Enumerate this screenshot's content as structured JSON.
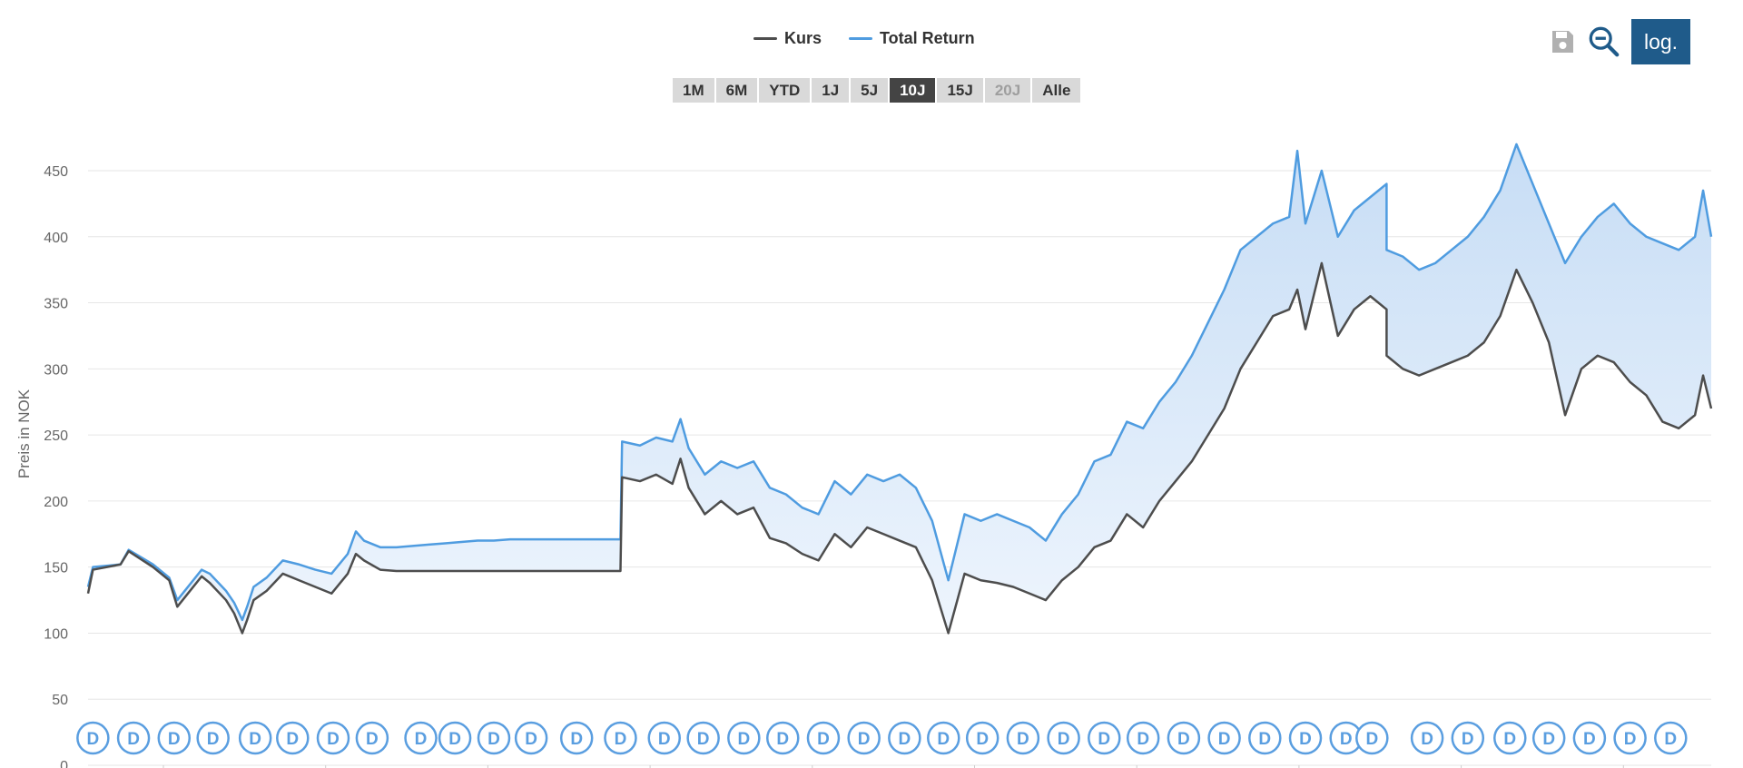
{
  "legend": {
    "items": [
      {
        "label": "Kurs",
        "color": "#4d4d4d"
      },
      {
        "label": "Total Return",
        "color": "#4f9ce0"
      }
    ]
  },
  "range_selector": {
    "buttons": [
      {
        "label": "1M",
        "state": "normal"
      },
      {
        "label": "6M",
        "state": "normal"
      },
      {
        "label": "YTD",
        "state": "normal"
      },
      {
        "label": "1J",
        "state": "normal"
      },
      {
        "label": "5J",
        "state": "normal"
      },
      {
        "label": "10J",
        "state": "active"
      },
      {
        "label": "15J",
        "state": "normal"
      },
      {
        "label": "20J",
        "state": "disabled"
      },
      {
        "label": "Alle",
        "state": "normal"
      }
    ]
  },
  "toolbar": {
    "icons": [
      "save-icon",
      "zoom-out-icon"
    ],
    "log_label": "log."
  },
  "colors": {
    "kurs": "#4d4d4d",
    "total_return": "#4f9ce0",
    "band_top": "#c7ddf5",
    "band_bottom": "#eef5fd",
    "grid": "#e6e6e6",
    "marker": "#5a9ee0",
    "active_button": "#444444",
    "log_button": "#1f5b8a"
  },
  "chart_data": {
    "type": "line",
    "ylabel": "Preis in NOK",
    "ylim": [
      0,
      470
    ],
    "y_ticks": [
      0,
      50,
      100,
      150,
      200,
      250,
      300,
      350,
      400,
      450
    ],
    "grid": true,
    "legend_position": "top-center",
    "x_range": [
      0,
      1
    ],
    "series": [
      {
        "name": "Kurs",
        "x": [
          0,
          0.003,
          0.02,
          0.025,
          0.04,
          0.05,
          0.055,
          0.07,
          0.075,
          0.085,
          0.09,
          0.095,
          0.098,
          0.102,
          0.11,
          0.12,
          0.13,
          0.14,
          0.15,
          0.16,
          0.165,
          0.17,
          0.18,
          0.19,
          0.2,
          0.21,
          0.22,
          0.23,
          0.24,
          0.25,
          0.26,
          0.27,
          0.275,
          0.28,
          0.29,
          0.3,
          0.31,
          0.32,
          0.328,
          0.329,
          0.34,
          0.35,
          0.36,
          0.365,
          0.37,
          0.38,
          0.39,
          0.4,
          0.41,
          0.42,
          0.43,
          0.44,
          0.45,
          0.46,
          0.47,
          0.48,
          0.49,
          0.5,
          0.51,
          0.52,
          0.53,
          0.54,
          0.55,
          0.56,
          0.57,
          0.58,
          0.59,
          0.6,
          0.61,
          0.62,
          0.63,
          0.64,
          0.65,
          0.66,
          0.67,
          0.68,
          0.69,
          0.7,
          0.71,
          0.72,
          0.73,
          0.74,
          0.745,
          0.75,
          0.76,
          0.77,
          0.78,
          0.79,
          0.8,
          0.8,
          0.81,
          0.82,
          0.83,
          0.84,
          0.85,
          0.86,
          0.87,
          0.88,
          0.89,
          0.9,
          0.91,
          0.92,
          0.93,
          0.94,
          0.95,
          0.96,
          0.97,
          0.98,
          0.99,
          0.995,
          1
        ],
        "values": [
          130,
          148,
          152,
          162,
          150,
          140,
          120,
          143,
          138,
          125,
          115,
          100,
          110,
          125,
          132,
          145,
          140,
          135,
          130,
          145,
          160,
          155,
          148,
          147,
          147,
          147,
          147,
          147,
          147,
          147,
          147,
          147,
          147,
          147,
          147,
          147,
          147,
          147,
          147,
          218,
          215,
          220,
          213,
          232,
          210,
          190,
          200,
          190,
          195,
          172,
          168,
          160,
          155,
          175,
          165,
          180,
          175,
          170,
          165,
          140,
          100,
          145,
          140,
          138,
          135,
          130,
          125,
          140,
          150,
          165,
          170,
          190,
          180,
          200,
          215,
          230,
          250,
          270,
          300,
          320,
          340,
          345,
          360,
          330,
          380,
          325,
          345,
          355,
          345,
          310,
          300,
          295,
          300,
          305,
          310,
          320,
          340,
          375,
          350,
          320,
          265,
          300,
          310,
          305,
          290,
          280,
          260,
          255,
          265,
          295,
          270
        ]
      },
      {
        "name": "Total Return",
        "x": [
          0,
          0.003,
          0.02,
          0.025,
          0.04,
          0.05,
          0.055,
          0.07,
          0.075,
          0.085,
          0.09,
          0.095,
          0.098,
          0.102,
          0.11,
          0.12,
          0.13,
          0.14,
          0.15,
          0.16,
          0.165,
          0.17,
          0.18,
          0.19,
          0.2,
          0.21,
          0.22,
          0.23,
          0.24,
          0.25,
          0.26,
          0.27,
          0.275,
          0.28,
          0.29,
          0.3,
          0.31,
          0.32,
          0.328,
          0.329,
          0.34,
          0.35,
          0.36,
          0.365,
          0.37,
          0.38,
          0.39,
          0.4,
          0.41,
          0.42,
          0.43,
          0.44,
          0.45,
          0.46,
          0.47,
          0.48,
          0.49,
          0.5,
          0.51,
          0.52,
          0.53,
          0.54,
          0.55,
          0.56,
          0.57,
          0.58,
          0.59,
          0.6,
          0.61,
          0.62,
          0.63,
          0.64,
          0.65,
          0.66,
          0.67,
          0.68,
          0.69,
          0.7,
          0.71,
          0.72,
          0.73,
          0.74,
          0.745,
          0.75,
          0.76,
          0.77,
          0.78,
          0.79,
          0.8,
          0.8,
          0.81,
          0.82,
          0.83,
          0.84,
          0.85,
          0.86,
          0.87,
          0.88,
          0.89,
          0.9,
          0.91,
          0.92,
          0.93,
          0.94,
          0.95,
          0.96,
          0.97,
          0.98,
          0.99,
          0.995,
          1
        ],
        "values": [
          135,
          150,
          152,
          163,
          152,
          142,
          125,
          148,
          145,
          132,
          123,
          110,
          120,
          135,
          142,
          155,
          152,
          148,
          145,
          160,
          177,
          170,
          165,
          165,
          166,
          167,
          168,
          169,
          170,
          170,
          171,
          171,
          171,
          171,
          171,
          171,
          171,
          171,
          171,
          245,
          242,
          248,
          245,
          262,
          240,
          220,
          230,
          225,
          230,
          210,
          205,
          195,
          190,
          215,
          205,
          220,
          215,
          220,
          210,
          185,
          140,
          190,
          185,
          190,
          185,
          180,
          170,
          190,
          205,
          230,
          235,
          260,
          255,
          275,
          290,
          310,
          335,
          360,
          390,
          400,
          410,
          415,
          465,
          410,
          450,
          400,
          420,
          430,
          440,
          390,
          385,
          375,
          380,
          390,
          400,
          415,
          435,
          470,
          440,
          410,
          380,
          400,
          415,
          425,
          410,
          400,
          395,
          390,
          400,
          435,
          400
        ]
      }
    ],
    "dividend_marker_label": "D",
    "dividend_markers_x": [
      0.003,
      0.028,
      0.053,
      0.077,
      0.103,
      0.126,
      0.151,
      0.175,
      0.205,
      0.226,
      0.25,
      0.273,
      0.301,
      0.328,
      0.355,
      0.379,
      0.404,
      0.428,
      0.453,
      0.478,
      0.503,
      0.527,
      0.551,
      0.576,
      0.601,
      0.626,
      0.65,
      0.675,
      0.7,
      0.725,
      0.75,
      0.775,
      0.791,
      0.825,
      0.85,
      0.876,
      0.9,
      0.925,
      0.95,
      0.975
    ]
  }
}
